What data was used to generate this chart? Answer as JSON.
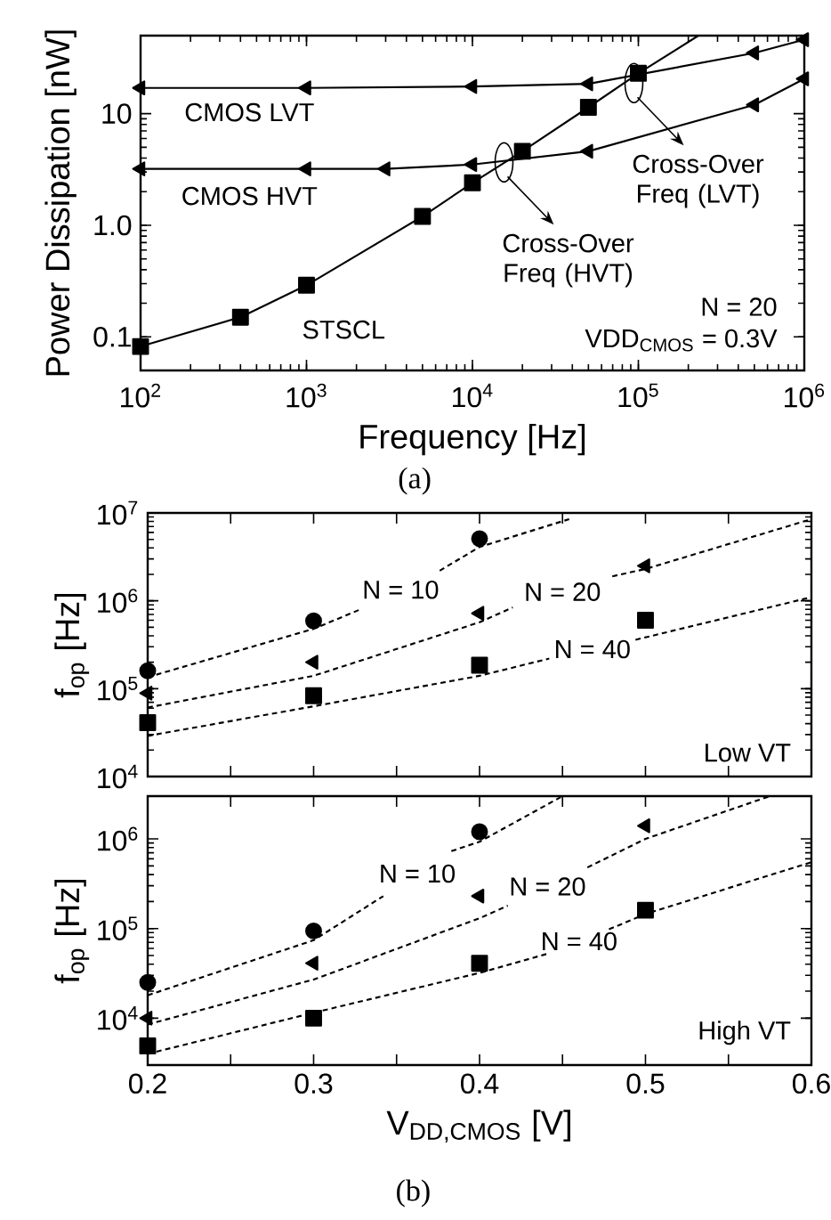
{
  "chart_data": [
    {
      "type": "line",
      "xlabel": "Frequency [Hz]",
      "ylabel": "Power Dissipation [nW]",
      "log": "xy",
      "xlim": [
        100,
        1000000
      ],
      "ylim": [
        0.05,
        50
      ],
      "xticks": [
        {
          "value": 100,
          "label": "10$^{2}$"
        },
        {
          "value": 1000,
          "label": "10$^{3}$"
        },
        {
          "value": 10000,
          "label": "10$^{4}$"
        },
        {
          "value": 100000,
          "label": "10$^{5}$"
        },
        {
          "value": 1000000,
          "label": "10$^{6}$"
        }
      ],
      "yticks": [
        0.1,
        {
          "value": 1,
          "label": "1.0"
        },
        10
      ],
      "series": [
        {
          "color": "#000000",
          "marker": "triangle",
          "x": [
            100,
            1000,
            10000,
            50000,
            500000,
            1000000
          ],
          "values": [
            17,
            17,
            17.5,
            18.5,
            35,
            46
          ]
        },
        {
          "color": "#000000",
          "marker": "triangle",
          "x": [
            100,
            1000,
            3000,
            10000,
            50000,
            500000,
            1000000
          ],
          "values": [
            3.2,
            3.2,
            3.2,
            3.5,
            4.6,
            12,
            20.5
          ]
        },
        {
          "color": "#000000",
          "marker": "square",
          "x": [
            100,
            400,
            1000,
            5000,
            10000,
            20000,
            50000,
            100000
          ],
          "values": [
            0.082,
            0.15,
            0.29,
            1.2,
            2.4,
            4.6,
            11.4,
            23
          ]
        },
        {
          "color": "#000000",
          "marker": "none",
          "x": [
            100000,
            230000
          ],
          "values": [
            23,
            50
          ]
        }
      ],
      "annotations": [
        {
          "text": "Cross-Over Freq (LVT)",
          "x": 94000,
          "y": 18.8
        },
        {
          "text": "Cross-Over Freq (HVT)",
          "x": 15500,
          "y": 3.66
        },
        "CMOS LVT",
        "CMOS HVT",
        "STSCL",
        "N = 20",
        "VDD$_{CMOS}$ = 0.3V",
        "(a)"
      ]
    },
    {
      "type": "scatter",
      "ylabel": "f$_{op}$ [Hz]",
      "log": true,
      "xlim": [
        0.2,
        0.6
      ],
      "ylim": [
        10000,
        10000000
      ],
      "tick_labels": "y",
      "xticks": [
        0.2,
        {
          "value": 0.25,
          "label": null
        },
        0.3,
        {
          "value": 0.35,
          "label": null
        },
        0.4,
        {
          "value": 0.45,
          "label": null
        },
        0.5,
        {
          "value": 0.55,
          "label": null
        },
        0.6
      ],
      "yticks": [
        {
          "value": 10000,
          "label": "10$^{4}$"
        },
        {
          "value": 100000,
          "label": "10$^{5}$"
        },
        {
          "value": 1000000,
          "label": "10$^{6}$"
        },
        {
          "value": 10000000,
          "label": "10$^{7}$"
        }
      ],
      "series": [
        {
          "color": "#000000",
          "marker": "circle",
          "x": [
            0.2,
            0.3,
            0.4
          ],
          "values": [
            160000,
            590000,
            5100000
          ]
        },
        {
          "color": "#000000",
          "marker": "triangle",
          "x": [
            0.2,
            0.3,
            0.4,
            0.5
          ],
          "values": [
            89000,
            200000,
            720000,
            2500000
          ]
        },
        {
          "color": "#000000",
          "marker": "square",
          "x": [
            0.2,
            0.3,
            0.4,
            0.5
          ],
          "values": [
            41000,
            83000,
            185000,
            600000
          ]
        },
        {
          "name": "N = 10",
          "type": "line",
          "line_style": "dashed",
          "marker": "none",
          "color": "#000000",
          "x": [
            0.2,
            0.3,
            0.329,
            0.35,
            0.376,
            0.4,
            0.454
          ],
          "values": [
            135000,
            480000,
            810000,
            null,
            2200000,
            4100000,
            8500000
          ]
        },
        {
          "name": "N = 20",
          "type": "line",
          "line_style": "dashed",
          "marker": "none",
          "color": "#000000",
          "x": [
            0.2,
            0.3,
            0.4,
            0.42,
            0.45,
            0.48,
            0.5,
            0.6
          ],
          "values": [
            61000,
            140000,
            570000,
            840000,
            null,
            1900000,
            2300000,
            8500000
          ]
        },
        {
          "name": "N = 40",
          "type": "line",
          "line_style": "dashed",
          "marker": "none",
          "color": "#000000",
          "x": [
            0.2,
            0.3,
            0.4,
            0.442,
            0.468,
            0.494,
            0.6
          ],
          "values": [
            29000,
            63000,
            140000,
            220000,
            null,
            360000,
            1100000
          ]
        }
      ],
      "annotations": [
        "Low VT"
      ]
    },
    {
      "type": "scatter",
      "xlabel": "V$_{DD,CMOS}$ [V]",
      "ylabel": "f$_{op}$ [Hz]",
      "log": true,
      "xlim": [
        0.2,
        0.6
      ],
      "ylim": [
        3000,
        3000000
      ],
      "xticks": [
        0.2,
        {
          "value": 0.25,
          "label": null
        },
        0.3,
        {
          "value": 0.35,
          "label": null
        },
        0.4,
        {
          "value": 0.45,
          "label": null
        },
        0.5,
        {
          "value": 0.55,
          "label": null
        },
        0.6
      ],
      "yticks": [
        {
          "value": 10000,
          "label": "10$^{4}$"
        },
        {
          "value": 100000,
          "label": "10$^{5}$"
        },
        {
          "value": 1000000,
          "label": "10$^{6}$"
        }
      ],
      "series": [
        {
          "color": "#000000",
          "marker": "circle",
          "x": [
            0.2,
            0.3,
            0.4
          ],
          "values": [
            25000,
            94000,
            1200000
          ]
        },
        {
          "color": "#000000",
          "marker": "triangle",
          "x": [
            0.2,
            0.3,
            0.4,
            0.5
          ],
          "values": [
            10000,
            41000,
            230000,
            1400000
          ]
        },
        {
          "color": "#000000",
          "marker": "square",
          "x": [
            0.2,
            0.3,
            0.4,
            0.5
          ],
          "values": [
            4900,
            10000,
            41000,
            160000
          ]
        },
        {
          "name": "N = 10",
          "type": "line",
          "line_style": "dashed",
          "marker": "none",
          "color": "#000000",
          "x": [
            0.2,
            0.3,
            0.342,
            0.36,
            0.383,
            0.4,
            0.45
          ],
          "values": [
            18000,
            74000,
            230000,
            null,
            730000,
            930000,
            3000000
          ]
        },
        {
          "name": "N = 20",
          "type": "line",
          "line_style": "dashed",
          "marker": "none",
          "color": "#000000",
          "x": [
            0.2,
            0.3,
            0.4,
            0.417,
            0.44,
            0.465,
            0.5,
            0.575
          ],
          "values": [
            8500,
            27000,
            130000,
            180000,
            null,
            480000,
            1000000,
            3000000
          ]
        },
        {
          "name": "N = 40",
          "type": "line",
          "line_style": "dashed",
          "marker": "none",
          "color": "#000000",
          "x": [
            0.2,
            0.3,
            0.4,
            0.442,
            0.46,
            0.478,
            0.5,
            0.6
          ],
          "values": [
            4000,
            11500,
            32000,
            53000,
            null,
            98000,
            145000,
            550000
          ]
        }
      ],
      "annotations": [
        "High VT",
        "(b)"
      ]
    }
  ]
}
